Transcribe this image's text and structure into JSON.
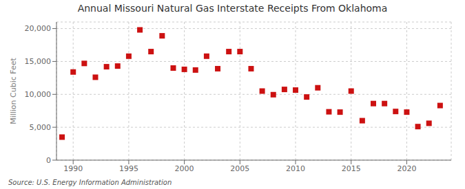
{
  "chart_data": {
    "type": "scatter",
    "title": "Annual Missouri Natural Gas Interstate Receipts From Oklahoma",
    "ylabel": "Million Cubic Feet",
    "source": "Source: U.S. Energy Information Administration",
    "x": [
      1989,
      1990,
      1991,
      1992,
      1993,
      1994,
      1995,
      1996,
      1997,
      1998,
      1999,
      2000,
      2001,
      2002,
      2003,
      2004,
      2005,
      2006,
      2007,
      2008,
      2009,
      2010,
      2011,
      2012,
      2013,
      2014,
      2015,
      2016,
      2017,
      2018,
      2019,
      2020,
      2021,
      2022,
      2023
    ],
    "values": [
      3500,
      13400,
      14700,
      12600,
      14200,
      14300,
      15800,
      19800,
      16500,
      18900,
      14000,
      13800,
      13700,
      15800,
      13900,
      16500,
      16500,
      13900,
      10500,
      9950,
      10750,
      10650,
      9600,
      11000,
      7350,
      7300,
      10500,
      6000,
      8600,
      8600,
      7400,
      7300,
      5100,
      5600,
      8300
    ],
    "color": "#cc1111",
    "marker": "square",
    "xlim": [
      1988.5,
      2024
    ],
    "xticks": [
      1990,
      1995,
      2000,
      2005,
      2010,
      2015,
      2020
    ],
    "ylim": [
      0,
      21000
    ],
    "yticks": [
      0,
      {
        "value": 5000,
        "label": "5,000"
      },
      {
        "value": 10000,
        "label": "10,000"
      },
      {
        "value": 15000,
        "label": "15,000"
      },
      {
        "value": 20000,
        "label": "20,000"
      }
    ],
    "grid": true
  }
}
